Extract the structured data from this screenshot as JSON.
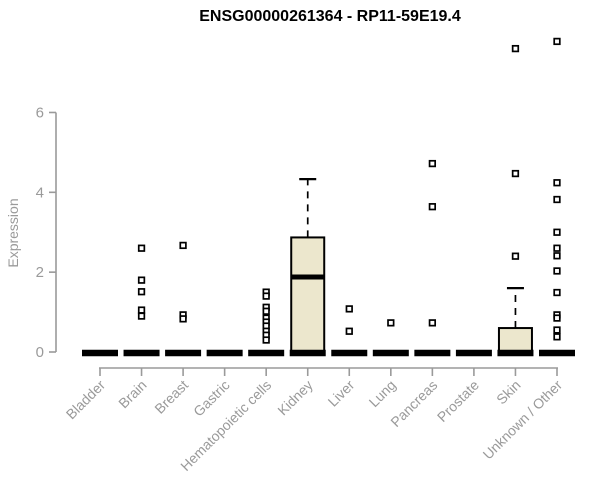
{
  "chart_data": {
    "type": "boxplot",
    "title": "ENSG00000261364 - RP11-59E19.4",
    "ylabel": "Expression",
    "xlabel": "",
    "yticks": [
      0,
      2,
      4,
      6
    ],
    "ylim": [
      0,
      7.9
    ],
    "grid": false,
    "legend": "none",
    "categories": [
      "Bladder",
      "Brain",
      "Breast",
      "Gastric",
      "Hematopoietic cells",
      "Kidney",
      "Liver",
      "Lung",
      "Pancreas",
      "Prostate",
      "Skin",
      "Unknown / Other"
    ],
    "series": [
      {
        "label": "Bladder",
        "q1": 0,
        "median": 0,
        "q3": 0,
        "whisker_low": 0,
        "whisker_high": 0,
        "outliers": []
      },
      {
        "label": "Brain",
        "q1": 0,
        "median": 0,
        "q3": 0,
        "whisker_low": 0,
        "whisker_high": 0,
        "outliers": [
          2.6,
          1.8,
          1.51,
          1.05,
          0.9
        ]
      },
      {
        "label": "Breast",
        "q1": 0,
        "median": 0,
        "q3": 0,
        "whisker_low": 0,
        "whisker_high": 0,
        "outliers": [
          2.67,
          0.93,
          0.83
        ]
      },
      {
        "label": "Gastric",
        "q1": 0,
        "median": 0,
        "q3": 0,
        "whisker_low": 0,
        "whisker_high": 0,
        "outliers": []
      },
      {
        "label": "Hematopoietic cells",
        "q1": 0,
        "median": 0,
        "q3": 0,
        "whisker_low": 0,
        "whisker_high": 0,
        "outliers": [
          1.5,
          1.4,
          1.12,
          1.02,
          0.85,
          0.75,
          0.65,
          0.52,
          0.42,
          0.3
        ]
      },
      {
        "label": "Kidney",
        "q1": 0,
        "median": 1.88,
        "q3": 2.87,
        "whisker_low": 0,
        "whisker_high": 4.33,
        "outliers": []
      },
      {
        "label": "Liver",
        "q1": 0,
        "median": 0,
        "q3": 0,
        "whisker_low": 0,
        "whisker_high": 0,
        "outliers": [
          1.08,
          0.52
        ]
      },
      {
        "label": "Lung",
        "q1": 0,
        "median": 0,
        "q3": 0,
        "whisker_low": 0,
        "whisker_high": 0,
        "outliers": [
          0.73
        ]
      },
      {
        "label": "Pancreas",
        "q1": 0,
        "median": 0,
        "q3": 0,
        "whisker_low": 0,
        "whisker_high": 0,
        "outliers": [
          4.72,
          3.64,
          0.73
        ]
      },
      {
        "label": "Prostate",
        "q1": 0,
        "median": 0,
        "q3": 0,
        "whisker_low": 0,
        "whisker_high": 0,
        "outliers": []
      },
      {
        "label": "Skin",
        "q1": 0,
        "median": 0,
        "q3": 0.6,
        "whisker_low": 0,
        "whisker_high": 1.6,
        "outliers": [
          7.6,
          4.47,
          2.4
        ]
      },
      {
        "label": "Unknown / Other",
        "q1": 0,
        "median": 0,
        "q3": 0,
        "whisker_low": 0,
        "whisker_high": 0,
        "outliers": [
          7.78,
          4.24,
          3.82,
          3.0,
          2.6,
          2.41,
          2.03,
          1.49,
          0.93,
          0.85,
          0.55,
          0.38
        ]
      }
    ],
    "colors": {
      "box_fill": "#ece7cd",
      "box_stroke": "#000000",
      "median": "#000000",
      "whisker": "#000000",
      "outlier_stroke": "#000000",
      "outlier_fill": "#ffffff",
      "axis_line": "#9a9a9a",
      "tick_text": "#9a9a9a",
      "title_text": "#000000",
      "background": "#ffffff"
    }
  }
}
